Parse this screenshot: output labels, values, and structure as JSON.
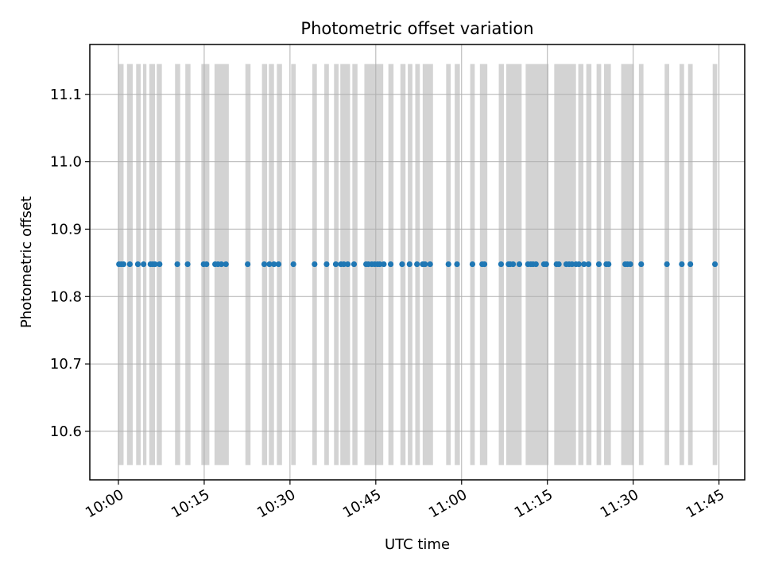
{
  "chart_data": {
    "type": "scatter",
    "title": "Photometric offset variation",
    "xlabel": "UTC time",
    "ylabel": "Photometric offset",
    "x_tick_labels": [
      "10:00",
      "10:15",
      "10:30",
      "10:45",
      "11:00",
      "11:15",
      "11:30",
      "11:45"
    ],
    "x_tick_minutes": [
      0,
      15,
      30,
      45,
      60,
      75,
      90,
      105
    ],
    "xlim_minutes": [
      -5,
      109.5
    ],
    "y_ticks": [
      10.6,
      10.7,
      10.8,
      10.9,
      11.0,
      11.1
    ],
    "y_tick_labels": [
      "10.6",
      "10.7",
      "10.8",
      "10.9",
      "11.0",
      "11.1"
    ],
    "ylim": [
      10.528,
      11.174
    ],
    "grid": true,
    "series": [
      {
        "color": "#1f77b4",
        "y_value": 10.848,
        "x_minutes": [
          0.1,
          0.5,
          0.9,
          2.0,
          3.4,
          4.4,
          5.6,
          6.0,
          6.4,
          7.2,
          10.3,
          12.1,
          14.9,
          15.4,
          16.9,
          17.4,
          18.0,
          18.8,
          22.6,
          25.5,
          26.4,
          27.2,
          28.0,
          30.6,
          34.3,
          36.4,
          38.0,
          38.9,
          39.4,
          40.1,
          41.2,
          43.3,
          43.7,
          44.3,
          44.8,
          45.3,
          45.7,
          46.4,
          47.6,
          49.6,
          50.9,
          52.2,
          53.2,
          53.6,
          54.5,
          57.7,
          59.2,
          61.9,
          63.6,
          64.0,
          66.9,
          68.2,
          68.5,
          69.0,
          70.1,
          71.6,
          72.1,
          72.5,
          73.0,
          74.4,
          74.8,
          76.6,
          77.0,
          78.3,
          78.8,
          79.3,
          80.0,
          80.5,
          81.4,
          82.2,
          84.0,
          85.3,
          85.7,
          88.6,
          89.0,
          89.5,
          91.4,
          95.9,
          98.5,
          100.0,
          104.3
        ]
      }
    ],
    "spans": {
      "color": "#d3d3d3",
      "y_range": [
        10.55,
        11.145
      ],
      "x_ranges_minutes": [
        [
          0.0,
          0.9
        ],
        [
          1.5,
          2.5
        ],
        [
          3.1,
          3.9
        ],
        [
          4.3,
          4.9
        ],
        [
          5.4,
          6.4
        ],
        [
          6.7,
          7.6
        ],
        [
          9.9,
          10.8
        ],
        [
          11.7,
          12.6
        ],
        [
          14.5,
          15.9
        ],
        [
          16.8,
          19.3
        ],
        [
          22.2,
          23.1
        ],
        [
          25.1,
          26.0
        ],
        [
          26.3,
          27.2
        ],
        [
          27.7,
          28.6
        ],
        [
          30.2,
          31.0
        ],
        [
          33.9,
          34.7
        ],
        [
          36.0,
          36.8
        ],
        [
          37.7,
          38.5
        ],
        [
          38.8,
          40.5
        ],
        [
          40.9,
          41.8
        ],
        [
          43.0,
          46.3
        ],
        [
          47.2,
          48.1
        ],
        [
          49.3,
          50.2
        ],
        [
          50.6,
          51.4
        ],
        [
          51.9,
          52.7
        ],
        [
          53.2,
          55.0
        ],
        [
          57.3,
          58.1
        ],
        [
          58.8,
          59.7
        ],
        [
          61.5,
          62.3
        ],
        [
          63.2,
          64.5
        ],
        [
          66.5,
          67.4
        ],
        [
          67.8,
          70.5
        ],
        [
          71.2,
          75.2
        ],
        [
          76.2,
          80.0
        ],
        [
          80.4,
          81.3
        ],
        [
          81.8,
          82.7
        ],
        [
          83.6,
          84.4
        ],
        [
          84.9,
          86.1
        ],
        [
          87.9,
          90.1
        ],
        [
          91.0,
          91.8
        ],
        [
          95.5,
          96.3
        ],
        [
          98.1,
          98.9
        ],
        [
          99.6,
          100.4
        ],
        [
          103.9,
          104.7
        ]
      ]
    }
  }
}
